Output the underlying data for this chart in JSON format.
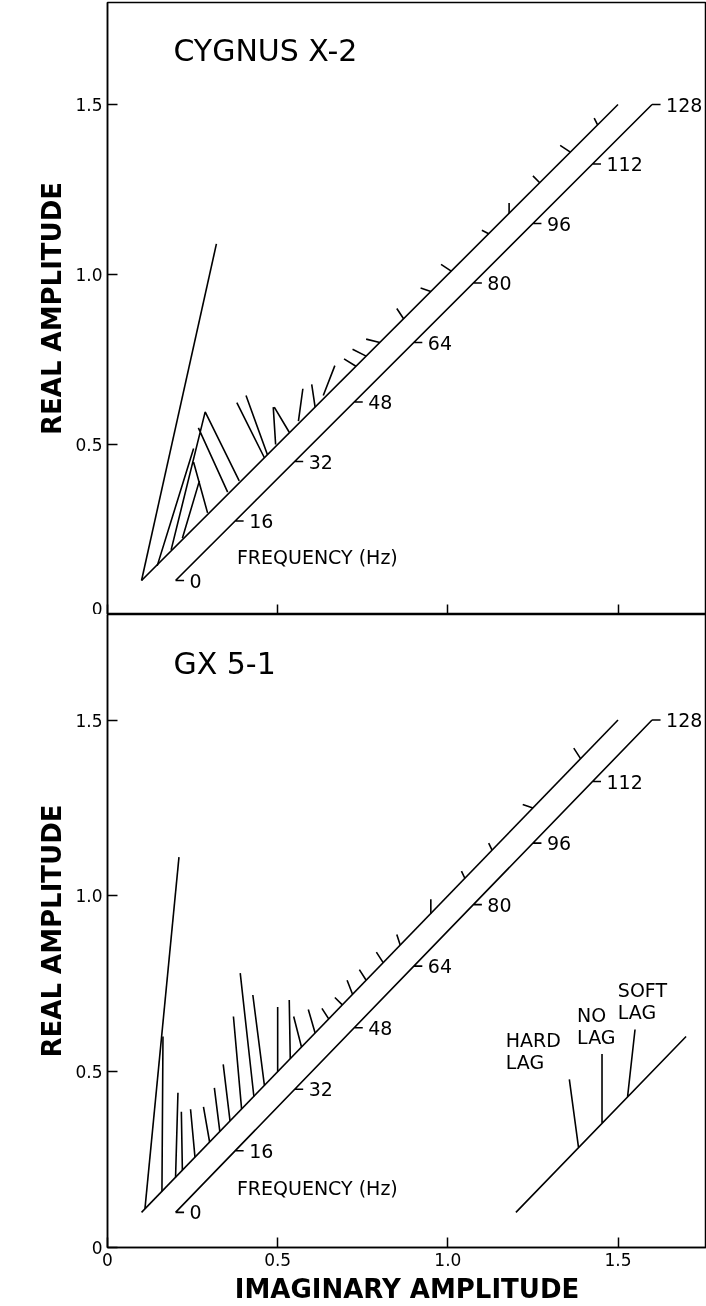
{
  "chart_data": [
    {
      "type": "line",
      "title": "CYGNUS X-2",
      "ylabel": "REAL AMPLITUDE",
      "xlim": [
        0,
        1.76
      ],
      "ylim": [
        0,
        1.8
      ],
      "xticks": [
        {
          "value": 0,
          "label": null
        },
        {
          "value": 0.5,
          "label": null
        },
        {
          "value": 1.0,
          "label": null
        },
        {
          "value": 1.5,
          "label": null
        }
      ],
      "yticks": [
        0,
        0.5,
        {
          "value": 1.0,
          "label": "1.0"
        },
        1.5
      ],
      "tick_labels": "y",
      "grid": false,
      "series": [
        {
          "color": "#000000",
          "x": [
            0.1,
            1.5
          ],
          "values": [
            0.1,
            1.5
          ]
        },
        {
          "color": "#000000",
          "x": [
            0.1,
            0.32
          ],
          "values": [
            0.1,
            1.09
          ]
        },
        {
          "color": "#000000",
          "x": [
            0.2,
            1.6,
            null,
            0.2,
            0.225,
            null,
            0.375,
            0.4,
            null,
            0.55,
            0.575,
            null,
            0.725,
            0.75,
            null,
            0.9,
            0.925,
            null,
            1.075,
            1.1,
            null,
            1.25,
            1.275,
            null,
            1.425,
            1.45,
            null,
            1.6,
            1.625,
            null
          ],
          "values": [
            0.1,
            1.5,
            null,
            0.1,
            0.1,
            null,
            0.275,
            0.275,
            null,
            0.45,
            0.45,
            null,
            0.625,
            0.625,
            null,
            0.8,
            0.8,
            null,
            0.975,
            0.975,
            null,
            1.15,
            1.15,
            null,
            1.325,
            1.325,
            null,
            1.5,
            1.5,
            null
          ]
        },
        {
          "color": "#000000",
          "x": [
            0.146,
            0.253,
            null,
            0.187,
            0.287,
            null,
            0.22,
            0.27,
            null,
            0.294,
            0.253,
            null,
            0.353,
            0.267,
            null,
            0.387,
            0.287,
            null,
            0.461,
            0.38,
            null,
            0.47,
            0.407,
            null,
            0.494,
            0.487,
            null,
            0.534,
            0.49,
            null,
            0.561,
            0.574,
            null,
            0.61,
            0.6,
            null,
            0.634,
            0.668,
            null,
            0.73,
            0.695,
            null,
            0.76,
            0.72,
            null,
            0.8,
            0.76,
            null,
            0.87,
            0.85,
            null,
            0.95,
            0.92,
            null,
            1.01,
            0.98,
            null,
            1.12,
            1.1,
            null,
            1.18,
            1.18,
            null,
            1.27,
            1.25,
            null,
            1.36,
            1.33,
            null,
            1.44,
            1.43,
            null
          ],
          "values": [
            0.143,
            0.488,
            null,
            0.19,
            0.596,
            null,
            0.224,
            0.393,
            null,
            0.299,
            0.448,
            null,
            0.36,
            0.549,
            null,
            0.393,
            0.596,
            null,
            0.461,
            0.623,
            null,
            0.47,
            0.644,
            null,
            0.5,
            0.61,
            null,
            0.536,
            0.61,
            null,
            0.569,
            0.664,
            null,
            0.61,
            0.677,
            null,
            0.644,
            0.732,
            null,
            0.73,
            0.752,
            null,
            0.76,
            0.78,
            null,
            0.8,
            0.81,
            null,
            0.87,
            0.9,
            null,
            0.95,
            0.96,
            null,
            1.01,
            1.03,
            null,
            1.12,
            1.13,
            null,
            1.18,
            1.21,
            null,
            1.27,
            1.29,
            null,
            1.36,
            1.38,
            null,
            1.44,
            1.46,
            null
          ]
        }
      ],
      "annotations": [
        {
          "text": "0",
          "x": 0.2,
          "y": 0.1
        },
        {
          "text": "16",
          "x": 0.375,
          "y": 0.275
        },
        {
          "text": "32",
          "x": 0.55,
          "y": 0.45
        },
        {
          "text": "48",
          "x": 0.725,
          "y": 0.625
        },
        {
          "text": "64",
          "x": 0.9,
          "y": 0.8
        },
        {
          "text": "80",
          "x": 1.075,
          "y": 0.975
        },
        {
          "text": "96",
          "x": 1.25,
          "y": 1.15
        },
        {
          "text": "112",
          "x": 1.425,
          "y": 1.325
        },
        {
          "text": "128",
          "x": 1.6,
          "y": 1.5
        },
        "FREQUENCY (Hz)"
      ]
    },
    {
      "type": "line",
      "title": "GX 5-1",
      "xlabel": "IMAGINARY AMPLITUDE",
      "ylabel": "REAL AMPLITUDE",
      "xlim": [
        0,
        1.76
      ],
      "ylim": [
        0,
        1.8
      ],
      "xticks": [
        0,
        0.5,
        {
          "value": 1.0,
          "label": "1.0"
        },
        1.5
      ],
      "yticks": [
        0,
        0.5,
        {
          "value": 1.0,
          "label": "1.0"
        },
        1.5
      ],
      "grid": false,
      "series": [
        {
          "color": "#000000",
          "x": [
            0.1,
            1.5
          ],
          "values": [
            0.1,
            1.5
          ]
        },
        {
          "color": "#000000",
          "x": [
            0.11,
            0.21
          ],
          "values": [
            0.11,
            1.11
          ]
        },
        {
          "color": "#000000",
          "x": [
            0.2,
            1.6,
            null,
            0.2,
            0.225,
            null,
            0.375,
            0.4,
            null,
            0.55,
            0.575,
            null,
            0.725,
            0.75,
            null,
            0.9,
            0.925,
            null,
            1.075,
            1.1,
            null,
            1.25,
            1.275,
            null,
            1.425,
            1.45,
            null,
            1.6,
            1.625,
            null
          ],
          "values": [
            0.1,
            1.5,
            null,
            0.1,
            0.1,
            null,
            0.275,
            0.275,
            null,
            0.45,
            0.45,
            null,
            0.625,
            0.625,
            null,
            0.8,
            0.8,
            null,
            0.975,
            0.975,
            null,
            1.15,
            1.15,
            null,
            1.325,
            1.325,
            null,
            1.5,
            1.5,
            null
          ]
        },
        {
          "color": "#000000",
          "x": [
            0.16,
            0.163,
            null,
            0.2,
            0.207,
            null,
            0.22,
            0.217,
            null,
            0.257,
            0.244,
            null,
            0.3,
            0.282,
            null,
            0.33,
            0.314,
            null,
            0.36,
            0.34,
            null,
            0.394,
            0.37,
            null,
            0.43,
            0.39,
            null,
            0.461,
            0.427,
            null,
            0.5,
            0.5,
            null,
            0.537,
            0.534,
            null,
            0.57,
            0.547,
            null,
            0.61,
            0.59,
            null,
            0.65,
            0.63,
            null,
            0.69,
            0.668,
            null,
            0.72,
            0.704,
            null,
            0.76,
            0.74,
            null,
            0.81,
            0.79,
            null,
            0.86,
            0.85,
            null,
            0.95,
            0.95,
            null,
            1.05,
            1.04,
            null,
            1.13,
            1.12,
            null,
            1.25,
            1.22,
            null,
            1.39,
            1.37,
            null
          ],
          "values": [
            0.16,
            0.6,
            null,
            0.2,
            0.44,
            null,
            0.22,
            0.386,
            null,
            0.257,
            0.393,
            null,
            0.3,
            0.4,
            null,
            0.33,
            0.454,
            null,
            0.36,
            0.521,
            null,
            0.394,
            0.657,
            null,
            0.43,
            0.78,
            null,
            0.461,
            0.718,
            null,
            0.5,
            0.684,
            null,
            0.537,
            0.704,
            null,
            0.57,
            0.657,
            null,
            0.61,
            0.677,
            null,
            0.65,
            0.68,
            null,
            0.69,
            0.711,
            null,
            0.72,
            0.76,
            null,
            0.76,
            0.79,
            null,
            0.81,
            0.84,
            null,
            0.86,
            0.89,
            null,
            0.95,
            0.99,
            null,
            1.05,
            1.07,
            null,
            1.13,
            1.15,
            null,
            1.25,
            1.26,
            null,
            1.39,
            1.42,
            null
          ]
        },
        {
          "color": "#000000",
          "x": [
            1.2,
            1.7,
            null,
            1.384,
            1.357,
            null,
            1.453,
            1.453,
            null,
            1.528,
            1.55,
            null
          ],
          "values": [
            0.1,
            0.6,
            null,
            0.284,
            0.478,
            null,
            0.353,
            0.55,
            null,
            0.428,
            0.62,
            null
          ]
        }
      ],
      "annotations": [
        {
          "text": "0",
          "x": 0.2,
          "y": 0.1
        },
        {
          "text": "16",
          "x": 0.375,
          "y": 0.275
        },
        {
          "text": "32",
          "x": 0.55,
          "y": 0.45
        },
        {
          "text": "48",
          "x": 0.725,
          "y": 0.625
        },
        {
          "text": "64",
          "x": 0.9,
          "y": 0.8
        },
        {
          "text": "80",
          "x": 1.075,
          "y": 0.975
        },
        {
          "text": "96",
          "x": 1.25,
          "y": 1.15
        },
        {
          "text": "112",
          "x": 1.425,
          "y": 1.325
        },
        {
          "text": "128",
          "x": 1.6,
          "y": 1.5
        },
        "FREQUENCY (Hz)",
        "HARD\nLAG",
        "NO\nLAG",
        "SOFT\nLAG"
      ]
    }
  ]
}
